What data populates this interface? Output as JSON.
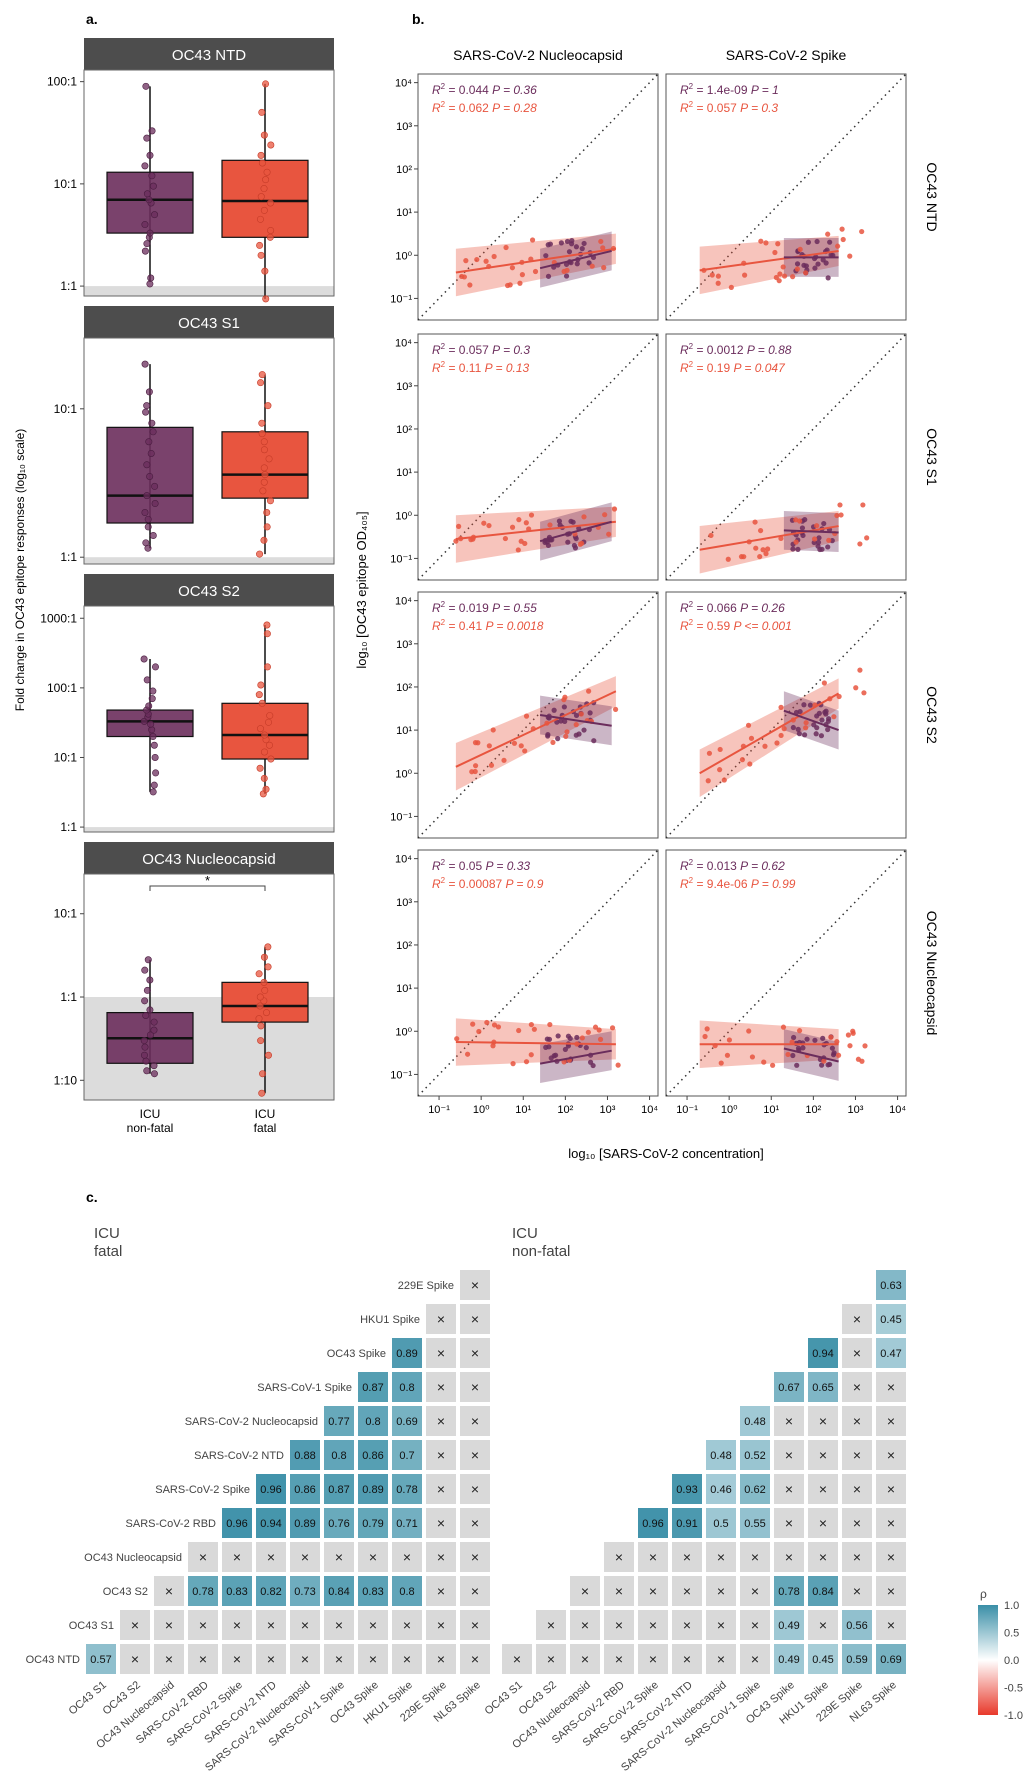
{
  "panel_labels": {
    "a": "a.",
    "b": "b.",
    "c": "c."
  },
  "colors": {
    "nonfatal": "#6b2d5c",
    "fatal": "#e8553f",
    "strip": "#4d4d4d",
    "ref_band": "#dcdcdc",
    "heat_pos": "#3a8fa7",
    "heat_neg": "#e8392b",
    "cell_na": "#d9d9d9"
  },
  "chart_data": [
    {
      "id": "a",
      "type": "box",
      "ylabel": "Fold change in OC43 epitope responses (log₁₀ scale)",
      "categories": [
        "ICU\nnon-fatal",
        "ICU\nfatal"
      ],
      "panels": [
        {
          "title": "OC43 NTD",
          "ylim": [
            0.8,
            130
          ],
          "yticks": [
            {
              "v": 1,
              "label": "1:1"
            },
            {
              "v": 10,
              "label": "10:1"
            },
            {
              "v": 100,
              "label": "100:1"
            }
          ],
          "boxes": [
            {
              "q1": 3.3,
              "median": 7.0,
              "q3": 13,
              "lo": 1.1,
              "hi": 90,
              "points": [
                1.05,
                1.2,
                2.2,
                2.6,
                3.0,
                3.3,
                4.0,
                5.0,
                6.5,
                7.0,
                8.0,
                9.5,
                12,
                15,
                19,
                28,
                33,
                90
              ]
            },
            {
              "q1": 3.0,
              "median": 6.8,
              "q3": 17,
              "lo": 0.75,
              "hi": 95,
              "points": [
                0.75,
                1.4,
                2.0,
                2.5,
                3.0,
                3.5,
                4.5,
                5.5,
                6.5,
                7.5,
                9,
                11,
                13,
                16,
                19,
                24,
                30,
                50,
                95
              ]
            }
          ],
          "significance": null
        },
        {
          "title": "OC43 S1",
          "ylim": [
            0.9,
            30
          ],
          "yticks": [
            {
              "v": 1,
              "label": "1:1"
            },
            {
              "v": 10,
              "label": "10:1"
            }
          ],
          "boxes": [
            {
              "q1": 1.7,
              "median": 2.6,
              "q3": 7.5,
              "lo": 1.15,
              "hi": 20,
              "points": [
                1.15,
                1.25,
                1.4,
                1.6,
                1.8,
                2.0,
                2.3,
                2.6,
                3.0,
                3.5,
                4.2,
                5.0,
                6.0,
                7.0,
                8.0,
                9.5,
                10.5,
                13,
                20
              ]
            },
            {
              "q1": 2.5,
              "median": 3.6,
              "q3": 7.0,
              "lo": 1.05,
              "hi": 17,
              "points": [
                1.05,
                1.3,
                1.6,
                2.0,
                2.4,
                2.8,
                3.2,
                3.6,
                4.0,
                4.6,
                5.3,
                6.0,
                6.8,
                8.0,
                10.5,
                15,
                17
              ]
            }
          ],
          "significance": null
        },
        {
          "title": "OC43 S2",
          "ylim": [
            0.85,
            1500
          ],
          "yticks": [
            {
              "v": 1,
              "label": "1:1"
            },
            {
              "v": 10,
              "label": "10:1"
            },
            {
              "v": 100,
              "label": "100:1"
            },
            {
              "v": 1000,
              "label": "1000:1"
            }
          ],
          "boxes": [
            {
              "q1": 20,
              "median": 33,
              "q3": 48,
              "lo": 3.2,
              "hi": 260,
              "points": [
                3.2,
                4.0,
                6.0,
                10,
                15,
                20,
                25,
                30,
                33,
                38,
                42,
                48,
                55,
                70,
                90,
                130,
                200,
                260
              ]
            },
            {
              "q1": 9.5,
              "median": 21,
              "q3": 60,
              "lo": 3.0,
              "hi": 800,
              "points": [
                3.0,
                3.5,
                5.0,
                7.0,
                9.5,
                12,
                15,
                18,
                21,
                26,
                32,
                40,
                60,
                80,
                110,
                200,
                600,
                800
              ]
            }
          ],
          "significance": null
        },
        {
          "title": "OC43 Nucleocapsid",
          "ylim": [
            0.058,
            30
          ],
          "yticks": [
            {
              "v": 0.1,
              "label": "1:10"
            },
            {
              "v": 1,
              "label": "1:1"
            },
            {
              "v": 10,
              "label": "10:1"
            }
          ],
          "boxes": [
            {
              "q1": 0.16,
              "median": 0.32,
              "q3": 0.65,
              "lo": 0.12,
              "hi": 2.8,
              "points": [
                0.12,
                0.13,
                0.15,
                0.17,
                0.2,
                0.25,
                0.3,
                0.35,
                0.4,
                0.5,
                0.6,
                0.7,
                0.9,
                1.2,
                1.6,
                2.1,
                2.8
              ]
            },
            {
              "q1": 0.5,
              "median": 0.78,
              "q3": 1.5,
              "lo": 0.07,
              "hi": 4.0,
              "points": [
                0.07,
                0.12,
                0.2,
                0.3,
                0.45,
                0.55,
                0.65,
                0.78,
                0.9,
                1.0,
                1.2,
                1.5,
                1.9,
                2.3,
                3.0,
                4.0
              ]
            }
          ],
          "significance": "*"
        }
      ]
    },
    {
      "id": "b",
      "type": "scatter",
      "xlabel": "log₁₀ [SARS-CoV-2 concentration]",
      "ylabel": "log₁₀ [OC43 epitope OD₄₀₅]",
      "columns": [
        "SARS-CoV-2 Nucleocapsid",
        "SARS-CoV-2 Spike"
      ],
      "rows": [
        "OC43 NTD",
        "OC43 S1",
        "OC43 S2",
        "OC43 Nucleocapsid"
      ],
      "xlim_log10": [
        -1.5,
        4.2
      ],
      "ylim_log10": [
        -1.5,
        4.2
      ],
      "tick_labels": [
        "10⁻¹",
        "10⁰",
        "10¹",
        "10²",
        "10³",
        "10⁴"
      ],
      "tick_values": [
        -1,
        0,
        1,
        2,
        3,
        4
      ],
      "reference_line": "y = x",
      "panels": [
        {
          "row": 0,
          "col": 0,
          "stats": [
            {
              "r2": "0.044",
              "p": "P = 0.36"
            },
            {
              "r2": "0.062",
              "p": "P = 0.28"
            }
          ],
          "fit_nonfatal": [
            [
              1.4,
              -0.3
            ],
            [
              3.1,
              0.1
            ]
          ],
          "fit_fatal": [
            [
              -0.6,
              -0.4
            ],
            [
              3.2,
              0.15
            ]
          ],
          "center": [
            2.1,
            -0.1
          ],
          "spread": [
            0.6,
            0.45
          ]
        },
        {
          "row": 0,
          "col": 1,
          "stats": [
            {
              "r2": "1.4e-09",
              "p": "P = 1"
            },
            {
              "r2": "0.057",
              "p": "P = 0.3"
            }
          ],
          "fit_nonfatal": [
            [
              1.3,
              -0.05
            ],
            [
              2.6,
              -0.05
            ]
          ],
          "fit_fatal": [
            [
              -0.7,
              -0.35
            ],
            [
              2.6,
              0.1
            ]
          ],
          "center": [
            2.0,
            -0.1
          ],
          "spread": [
            0.5,
            0.45
          ]
        },
        {
          "row": 1,
          "col": 0,
          "stats": [
            {
              "r2": "0.057",
              "p": "P = 0.3"
            },
            {
              "r2": "0.11",
              "p": "P = 0.13"
            }
          ],
          "fit_nonfatal": [
            [
              1.4,
              -0.6
            ],
            [
              3.1,
              -0.15
            ]
          ],
          "fit_fatal": [
            [
              -0.6,
              -0.55
            ],
            [
              3.2,
              -0.15
            ]
          ],
          "center": [
            2.1,
            -0.45
          ],
          "spread": [
            0.6,
            0.35
          ]
        },
        {
          "row": 1,
          "col": 1,
          "stats": [
            {
              "r2": "0.0012",
              "p": "P = 0.88"
            },
            {
              "r2": "0.19",
              "p": "P = 0.047"
            }
          ],
          "fit_nonfatal": [
            [
              1.3,
              -0.35
            ],
            [
              2.6,
              -0.4
            ]
          ],
          "fit_fatal": [
            [
              -0.7,
              -0.8
            ],
            [
              2.6,
              -0.25
            ]
          ],
          "center": [
            2.0,
            -0.45
          ],
          "spread": [
            0.5,
            0.35
          ]
        },
        {
          "row": 2,
          "col": 0,
          "stats": [
            {
              "r2": "0.019",
              "p": "P = 0.55"
            },
            {
              "r2": "0.41",
              "p": "P = 0.0018"
            }
          ],
          "fit_nonfatal": [
            [
              1.4,
              1.35
            ],
            [
              3.1,
              1.1
            ]
          ],
          "fit_fatal": [
            [
              -0.6,
              0.15
            ],
            [
              3.2,
              1.9
            ]
          ],
          "center": [
            2.1,
            1.2
          ],
          "spread": [
            0.6,
            0.45
          ]
        },
        {
          "row": 2,
          "col": 1,
          "stats": [
            {
              "r2": "0.066",
              "p": "P = 0.26"
            },
            {
              "r2": "0.59",
              "p": "P <= 0.001"
            }
          ],
          "fit_nonfatal": [
            [
              1.3,
              1.45
            ],
            [
              2.6,
              1.0
            ]
          ],
          "fit_fatal": [
            [
              -0.7,
              0.0
            ],
            [
              2.6,
              1.85
            ]
          ],
          "center": [
            2.0,
            1.2
          ],
          "spread": [
            0.5,
            0.45
          ]
        },
        {
          "row": 3,
          "col": 0,
          "stats": [
            {
              "r2": "0.05",
              "p": "P = 0.33"
            },
            {
              "r2": "0.00087",
              "p": "P = 0.9"
            }
          ],
          "fit_nonfatal": [
            [
              1.4,
              -0.75
            ],
            [
              3.1,
              -0.45
            ]
          ],
          "fit_fatal": [
            [
              -0.6,
              -0.25
            ],
            [
              3.2,
              -0.3
            ]
          ],
          "center": [
            2.1,
            -0.45
          ],
          "spread": [
            0.6,
            0.35
          ]
        },
        {
          "row": 3,
          "col": 1,
          "stats": [
            {
              "r2": "0.013",
              "p": "P = 0.62"
            },
            {
              "r2": "9.4e-06",
              "p": "P = 0.99"
            }
          ],
          "fit_nonfatal": [
            [
              1.3,
              -0.4
            ],
            [
              2.6,
              -0.7
            ]
          ],
          "fit_fatal": [
            [
              -0.7,
              -0.3
            ],
            [
              2.6,
              -0.3
            ]
          ],
          "center": [
            2.0,
            -0.45
          ],
          "spread": [
            0.5,
            0.35
          ]
        }
      ]
    },
    {
      "id": "c",
      "type": "heatmap",
      "titles": [
        "ICU\nfatal",
        "ICU\nnon-fatal"
      ],
      "labels": [
        "OC43 S1",
        "OC43 S2",
        "OC43 Nucleocapsid",
        "SARS-CoV-2 RBD",
        "SARS-CoV-2 Spike",
        "SARS-CoV-2 NTD",
        "SARS-CoV-2 Nucleocapsid",
        "SARS-CoV-1 Spike",
        "OC43 Spike",
        "HKU1 Spike",
        "229E Spike",
        "NL63 Spike"
      ],
      "row_labels": [
        "229E Spike",
        "HKU1 Spike",
        "OC43 Spike",
        "SARS-CoV-1 Spike",
        "SARS-CoV-2 Nucleocapsid",
        "SARS-CoV-2 NTD",
        "SARS-CoV-2 Spike",
        "SARS-CoV-2 RBD",
        "OC43 Nucleocapsid",
        "OC43 S2",
        "OC43 S1",
        "OC43 NTD"
      ],
      "legend": {
        "title": "ρ",
        "ticks": [
          "1.0",
          "0.5",
          "0.0",
          "-0.5",
          "-1.0"
        ]
      },
      "fatal": [
        [
          "x"
        ],
        [
          "x",
          "x"
        ],
        [
          "0.89",
          "x",
          "x"
        ],
        [
          "0.87",
          "0.8",
          "x",
          "x"
        ],
        [
          "0.77",
          "0.8",
          "0.69",
          "x",
          "x"
        ],
        [
          "0.88",
          "0.8",
          "0.86",
          "0.7",
          "x",
          "x"
        ],
        [
          "0.96",
          "0.86",
          "0.87",
          "0.89",
          "0.78",
          "x",
          "x"
        ],
        [
          "0.96",
          "0.94",
          "0.89",
          "0.76",
          "0.79",
          "0.71",
          "x",
          "x"
        ],
        [
          "x",
          "x",
          "x",
          "x",
          "x",
          "x",
          "x",
          "x",
          "x"
        ],
        [
          "x",
          "0.78",
          "0.83",
          "0.82",
          "0.73",
          "0.84",
          "0.83",
          "0.8",
          "x",
          "x"
        ],
        [
          "x",
          "x",
          "x",
          "x",
          "x",
          "x",
          "x",
          "x",
          "x",
          "x",
          "x"
        ],
        [
          "0.57",
          "x",
          "x",
          "x",
          "x",
          "x",
          "x",
          "x",
          "x",
          "x",
          "x",
          "x"
        ]
      ],
      "nonfatal": [
        [
          "0.63"
        ],
        [
          "x",
          "0.45"
        ],
        [
          "0.94",
          "x",
          "0.47"
        ],
        [
          "0.67",
          "0.65",
          "x",
          "x"
        ],
        [
          "0.48",
          "x",
          "x",
          "x",
          "x"
        ],
        [
          "0.48",
          "0.52",
          "x",
          "x",
          "x",
          "x"
        ],
        [
          "0.93",
          "0.46",
          "0.62",
          "x",
          "x",
          "x",
          "x"
        ],
        [
          "0.96",
          "0.91",
          "0.5",
          "0.55",
          "x",
          "x",
          "x",
          "x"
        ],
        [
          "x",
          "x",
          "x",
          "x",
          "x",
          "x",
          "x",
          "x",
          "x"
        ],
        [
          "x",
          "x",
          "x",
          "x",
          "x",
          "x",
          "0.78",
          "0.84",
          "x",
          "x"
        ],
        [
          "x",
          "x",
          "x",
          "x",
          "x",
          "x",
          "x",
          "0.49",
          "x",
          "0.56",
          "x"
        ],
        [
          "x",
          "x",
          "x",
          "x",
          "x",
          "x",
          "x",
          "x",
          "0.49",
          "0.45",
          "0.59",
          "0.69"
        ]
      ]
    }
  ]
}
